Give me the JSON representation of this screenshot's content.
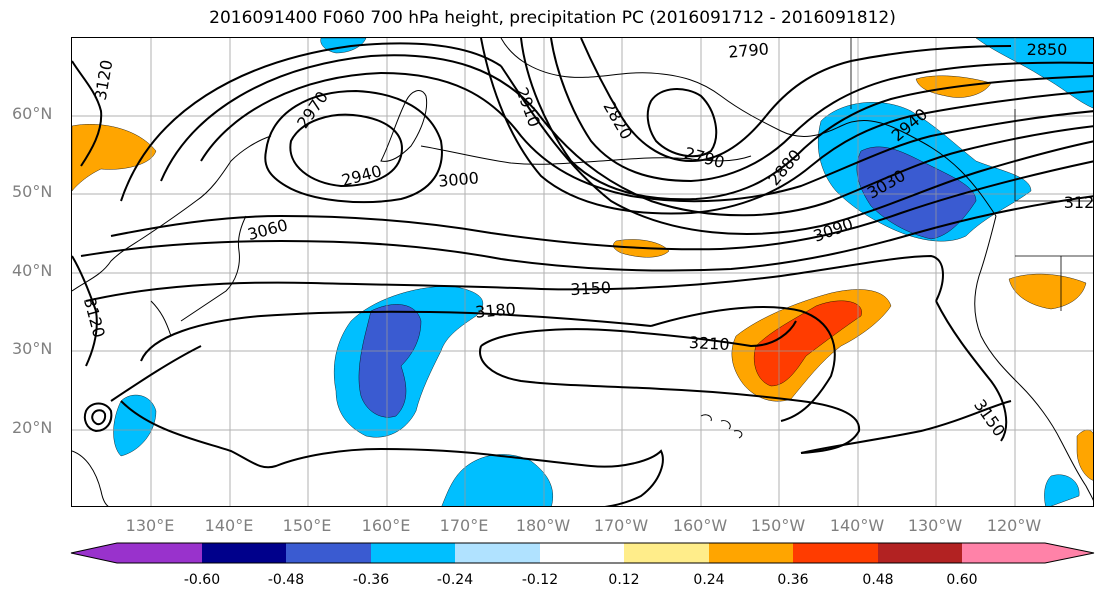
{
  "title": "2016091400 F060 700 hPa height, precipitation PC (2016091712 - 2016091812)",
  "lat_labels": [
    "60°N",
    "50°N",
    "40°N",
    "30°N",
    "20°N"
  ],
  "lon_labels": [
    "130°E",
    "140°E",
    "150°E",
    "160°E",
    "170°E",
    "180°W",
    "170°W",
    "160°W",
    "150°W",
    "140°W",
    "130°W",
    "120°W"
  ],
  "contour_labels": [
    "3120",
    "2970",
    "2940",
    "3000",
    "3060",
    "2910",
    "2820",
    "2790",
    "2790",
    "2850",
    "2880",
    "2940",
    "3030",
    "3090",
    "3150",
    "3180",
    "3210",
    "3120",
    "3150",
    "312"
  ],
  "colorbar": {
    "colors": [
      "#9932cc",
      "#00008b",
      "#3a5bd1",
      "#00bfff",
      "#b0e2ff",
      "#ffffff",
      "#ffed8a",
      "#ffa500",
      "#ff3c00",
      "#b22222",
      "#ff82a8"
    ],
    "tick_labels": [
      "-0.60",
      "-0.48",
      "-0.36",
      "-0.24",
      "-0.12",
      "0.12",
      "0.24",
      "0.36",
      "0.48",
      "0.60"
    ]
  }
}
